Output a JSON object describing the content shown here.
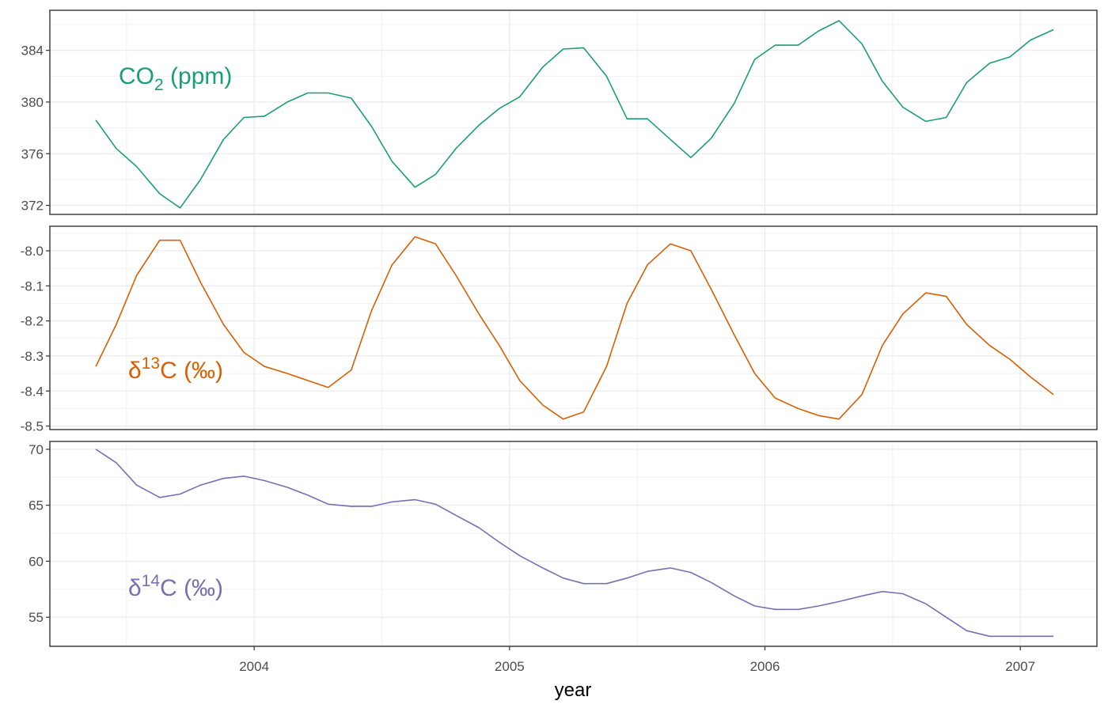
{
  "chart_data": {
    "type": "line",
    "xlabel": "year",
    "x_ticks": [
      2004,
      2005,
      2006,
      2007
    ],
    "xlim": [
      2003.2,
      2007.3
    ],
    "grid": true,
    "shared_x": [
      2003.38,
      2003.46,
      2003.54,
      2003.63,
      2003.71,
      2003.79,
      2003.88,
      2003.96,
      2004.04,
      2004.13,
      2004.21,
      2004.29,
      2004.38,
      2004.46,
      2004.54,
      2004.63,
      2004.71,
      2004.79,
      2004.88,
      2004.96,
      2005.04,
      2005.13,
      2005.21,
      2005.29,
      2005.38,
      2005.46,
      2005.54,
      2005.63,
      2005.71,
      2005.79,
      2005.88,
      2005.96,
      2006.04,
      2006.13,
      2006.21,
      2006.29,
      2006.38,
      2006.46,
      2006.54,
      2006.63,
      2006.71,
      2006.79,
      2006.88,
      2006.96,
      2007.04,
      2007.13
    ],
    "panels": [
      {
        "name": "co2",
        "label": {
          "prefix": "CO",
          "sub": "2",
          "suffix": " (ppm)",
          "sup": ""
        },
        "color": "#1b9e77",
        "y_ticks": [
          372,
          376,
          380,
          384
        ],
        "y_tick_labels": [
          "372",
          "376",
          "380",
          "384"
        ],
        "ylim": [
          371.3,
          387.1
        ],
        "values": [
          378.6,
          376.4,
          375.0,
          372.9,
          371.8,
          374.0,
          377.1,
          378.8,
          378.9,
          380.0,
          380.7,
          380.7,
          380.3,
          378.1,
          375.4,
          373.4,
          374.4,
          376.4,
          378.2,
          379.5,
          380.4,
          382.7,
          384.1,
          384.2,
          382.0,
          378.7,
          378.7,
          377.1,
          375.7,
          377.2,
          379.9,
          383.3,
          384.4,
          384.4,
          385.5,
          386.3,
          384.5,
          381.6,
          379.6,
          378.5,
          378.8,
          381.5,
          383.0,
          383.5,
          384.8,
          385.6
        ]
      },
      {
        "name": "d13c",
        "label": {
          "prefix": "δ",
          "sup": "13",
          "suffix": "C (‰)",
          "sub": ""
        },
        "color": "#d95f02",
        "y_ticks": [
          -8.5,
          -8.4,
          -8.3,
          -8.2,
          -8.1,
          -8.0
        ],
        "y_tick_labels": [
          "-8.5",
          "-8.4",
          "-8.3",
          "-8.2",
          "-8.1",
          "-8.0"
        ],
        "ylim": [
          -8.51,
          -7.93
        ],
        "values": [
          -8.33,
          -8.21,
          -8.07,
          -7.97,
          -7.97,
          -8.09,
          -8.21,
          -8.29,
          -8.33,
          -8.35,
          -8.37,
          -8.39,
          -8.34,
          -8.17,
          -8.04,
          -7.96,
          -7.98,
          -8.07,
          -8.18,
          -8.27,
          -8.37,
          -8.44,
          -8.48,
          -8.46,
          -8.33,
          -8.15,
          -8.04,
          -7.98,
          -8.0,
          -8.11,
          -8.24,
          -8.35,
          -8.42,
          -8.45,
          -8.47,
          -8.48,
          -8.41,
          -8.27,
          -8.18,
          -8.12,
          -8.13,
          -8.21,
          -8.27,
          -8.31,
          -8.36,
          -8.41
        ]
      },
      {
        "name": "d14c",
        "label": {
          "prefix": "δ",
          "sup": "14",
          "suffix": "C (‰)",
          "sub": ""
        },
        "color": "#7570b3",
        "y_ticks": [
          55,
          60,
          65,
          70
        ],
        "y_tick_labels": [
          "55",
          "60",
          "65",
          "70"
        ],
        "ylim": [
          52.4,
          70.7
        ],
        "values": [
          70.0,
          68.8,
          66.8,
          65.7,
          66.0,
          66.8,
          67.4,
          67.6,
          67.2,
          66.6,
          65.9,
          65.1,
          64.9,
          64.9,
          65.3,
          65.5,
          65.1,
          64.1,
          63.0,
          61.7,
          60.5,
          59.4,
          58.5,
          58.0,
          58.0,
          58.5,
          59.1,
          59.4,
          59.0,
          58.1,
          56.9,
          56.0,
          55.7,
          55.7,
          56.0,
          56.4,
          56.9,
          57.3,
          57.1,
          56.2,
          55.0,
          53.8,
          53.3,
          53.3,
          53.3,
          53.3
        ]
      }
    ]
  }
}
